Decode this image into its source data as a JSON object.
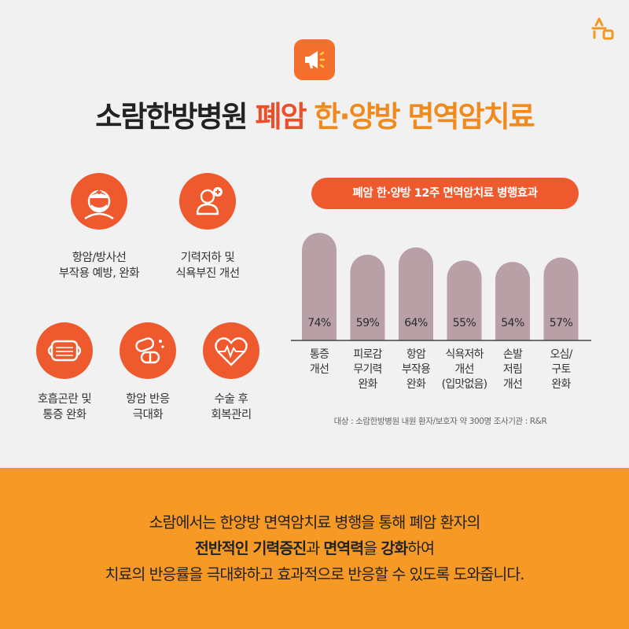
{
  "title": {
    "part1": "소람한방병원",
    "part2": "폐암",
    "part3": "한·양방 면역암치료"
  },
  "icons": {
    "logo": "soram-logo-icon",
    "megaphone": "megaphone-icon"
  },
  "features": [
    {
      "icon": "medical-mask-person-icon",
      "label": "항암/방사선\n부작용 예방, 완화"
    },
    {
      "icon": "person-plus-icon",
      "label": "기력저하 및\n식욕부진 개선"
    },
    {
      "icon": "face-mask-icon",
      "label": "호흡곤란 및\n통증 완화"
    },
    {
      "icon": "pills-icon",
      "label": "항암 반응\n극대화"
    },
    {
      "icon": "heart-pulse-icon",
      "label": "수술 후\n회복관리"
    }
  ],
  "chart_data": {
    "type": "bar",
    "title": "폐암 한·양방 12주 면역암치료 병행효과",
    "categories": [
      "통증\n개선",
      "피로감\n무기력\n완화",
      "항암\n부작용\n완화",
      "식욕저하\n개선\n(입맛없음)",
      "손발\n저림\n개선",
      "오심/\n구토\n완화"
    ],
    "values": [
      74,
      59,
      64,
      55,
      54,
      57
    ],
    "value_labels": [
      "74%",
      "59%",
      "64%",
      "55%",
      "54%",
      "57%"
    ],
    "ylim": [
      0,
      80
    ],
    "grid": false,
    "bar_color": "#b9a0a7"
  },
  "note": "대상 : 소람한방병원 내원 환자/보호자 약 300명    조사기관 : R&R",
  "footer": {
    "line1": "소람에서는 한양방 면역암치료 병행을 통해 폐암 환자의",
    "line2_b1": "전반적인 기력증진",
    "line2_t1": "과 ",
    "line2_b2": "면역력",
    "line2_t2": "을 ",
    "line2_b3": "강화",
    "line2_t3": "하여",
    "line3": "치료의 반응률을 극대화하고 효과적으로 반응할 수 있도록 도와줍니다."
  },
  "colors": {
    "accent": "#ee5a2e",
    "title_red": "#ee4d2a",
    "title_orange": "#f18a1c",
    "footer_bg": "#f79925",
    "background": "#f1f1f2"
  }
}
